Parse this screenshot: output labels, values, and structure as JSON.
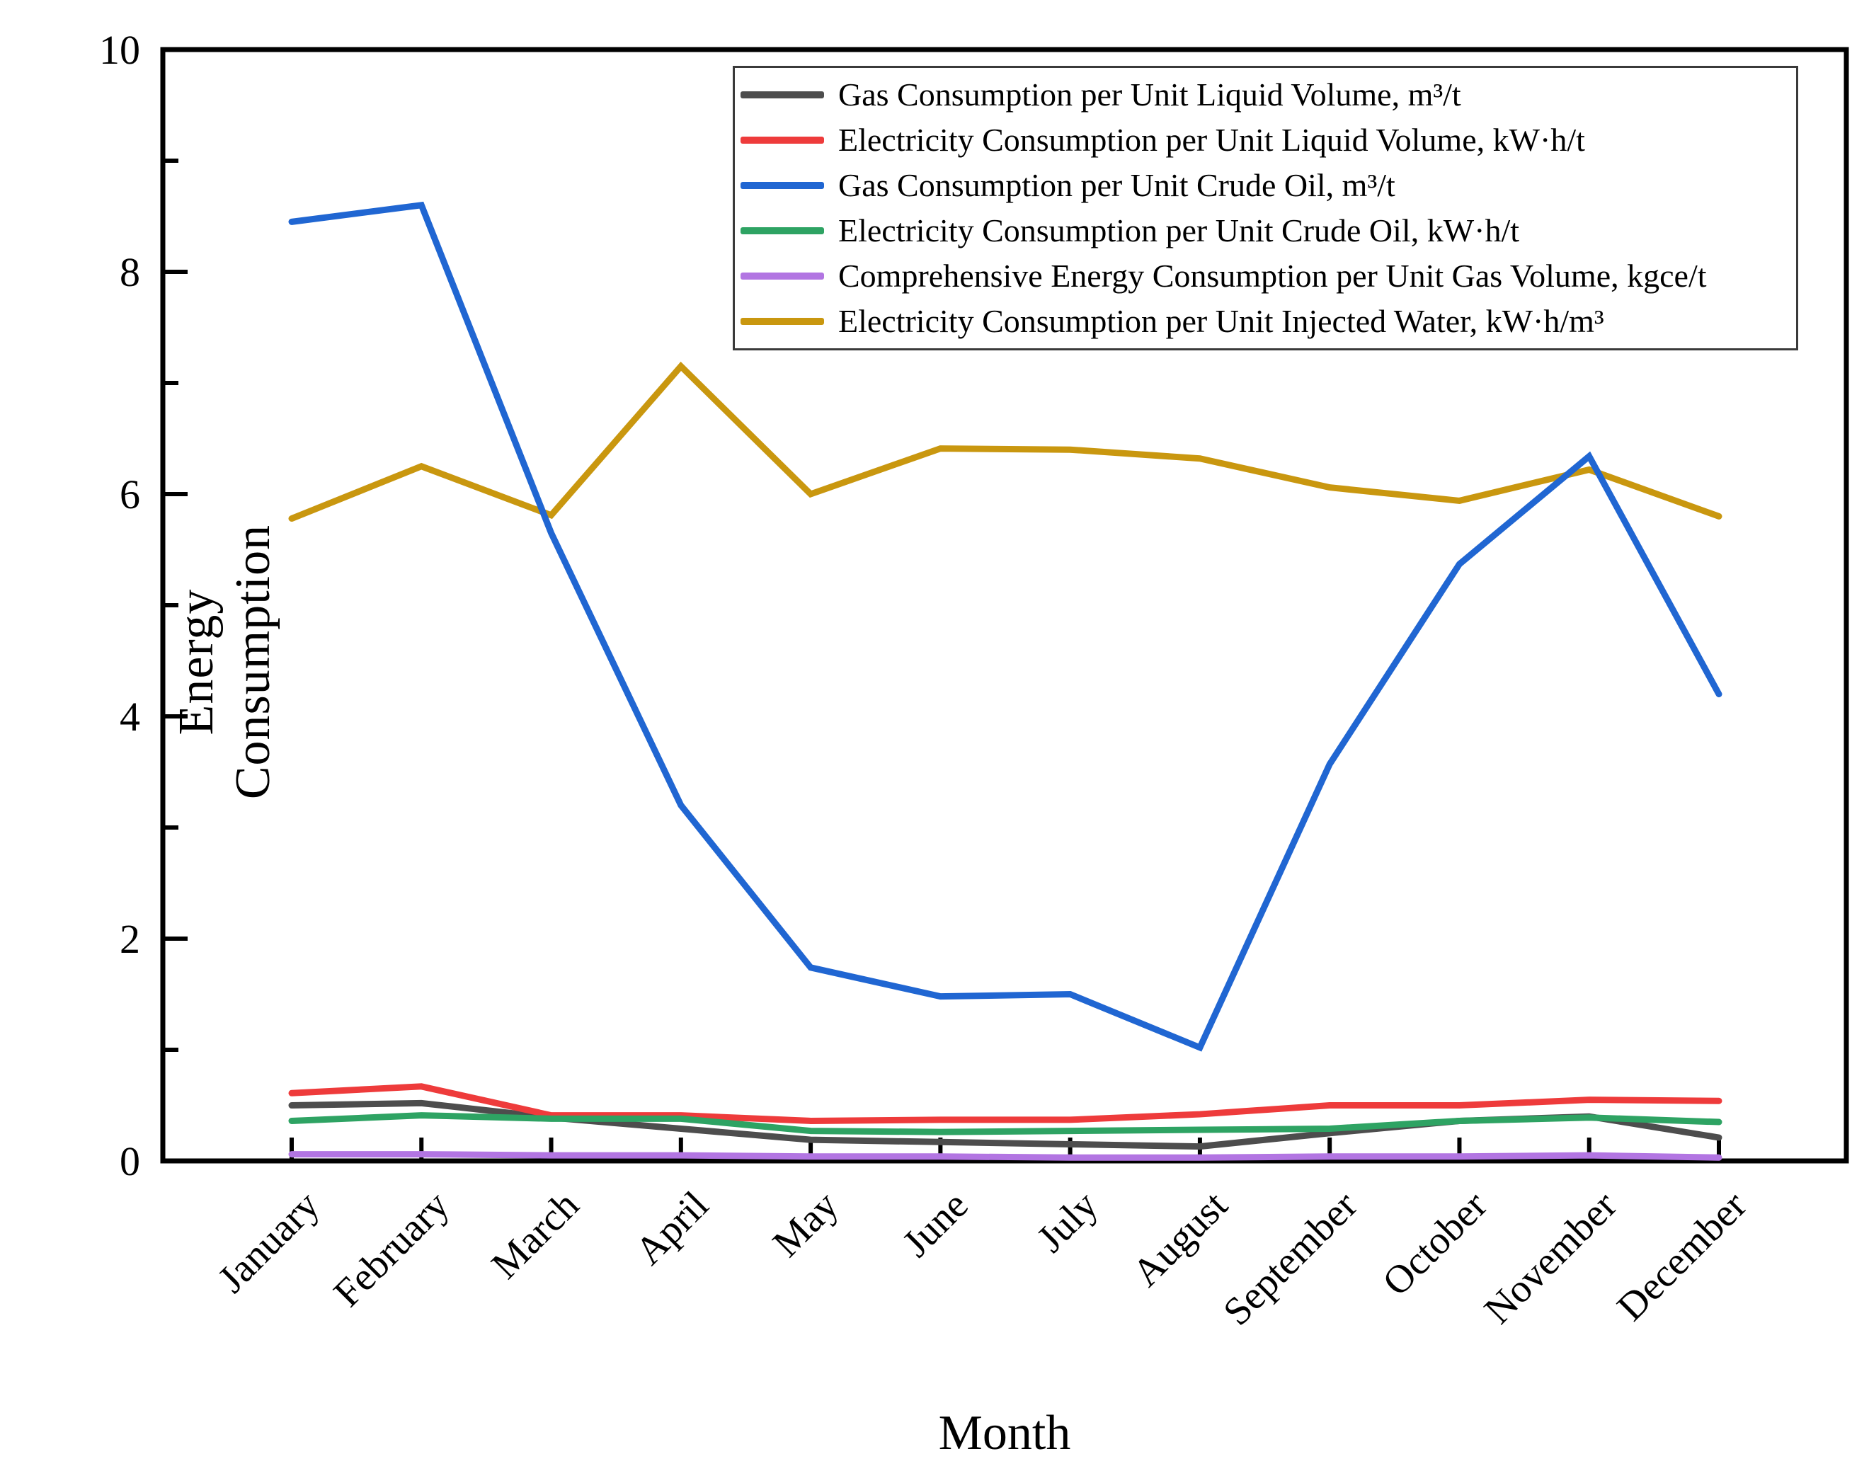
{
  "figure": {
    "background": "#ffffff",
    "frame_color": "#000000",
    "legend_border_color": "#3a3a3a"
  },
  "chart_data": {
    "type": "line",
    "title": "",
    "xlabel": "Month",
    "ylabel": "Energy Consumption",
    "ylim": [
      0,
      10
    ],
    "yticks_major": [
      0,
      2,
      4,
      6,
      8,
      10
    ],
    "yticks_minor": [
      1,
      3,
      5,
      7,
      9
    ],
    "grid": false,
    "legend_position": "top-right-inside",
    "categories": [
      "January",
      "February",
      "March",
      "April",
      "May",
      "June",
      "July",
      "August",
      "September",
      "October",
      "November",
      "December"
    ],
    "series": [
      {
        "name": "Gas Consumption per Unit Liquid Volume, m³/t",
        "color": "#4d4d4d",
        "values": [
          0.5,
          0.52,
          0.39,
          0.29,
          0.19,
          0.17,
          0.15,
          0.13,
          0.25,
          0.36,
          0.4,
          0.21
        ]
      },
      {
        "name": "Electricity Consumption per Unit Liquid Volume, kW·h/t",
        "color": "#ee3b3b",
        "values": [
          0.61,
          0.67,
          0.41,
          0.41,
          0.36,
          0.37,
          0.37,
          0.42,
          0.5,
          0.5,
          0.55,
          0.54
        ]
      },
      {
        "name": "Gas Consumption per Unit Crude Oil, m³/t",
        "color": "#2066d2",
        "values": [
          8.45,
          8.6,
          5.65,
          3.2,
          1.74,
          1.48,
          1.5,
          1.02,
          3.57,
          5.37,
          6.34,
          4.2
        ]
      },
      {
        "name": "Electricity Consumption per Unit Crude Oil, kW·h/t",
        "color": "#2ea363",
        "values": [
          0.36,
          0.41,
          0.38,
          0.38,
          0.27,
          0.26,
          0.27,
          0.28,
          0.29,
          0.36,
          0.39,
          0.35
        ]
      },
      {
        "name": "Comprehensive Energy Consumption per Unit Gas Volume, kgce/t",
        "color": "#b275e2",
        "values": [
          0.06,
          0.06,
          0.05,
          0.05,
          0.04,
          0.04,
          0.03,
          0.03,
          0.04,
          0.04,
          0.05,
          0.03
        ]
      },
      {
        "name": "Electricity Consumption per Unit Injected Water, kW·h/m³",
        "color": "#c9970f",
        "values": [
          5.78,
          6.25,
          5.81,
          7.15,
          6.0,
          6.41,
          6.4,
          6.32,
          6.06,
          5.94,
          6.22,
          5.8
        ]
      }
    ],
    "draw_order": [
      0,
      1,
      3,
      4,
      5,
      2
    ]
  }
}
